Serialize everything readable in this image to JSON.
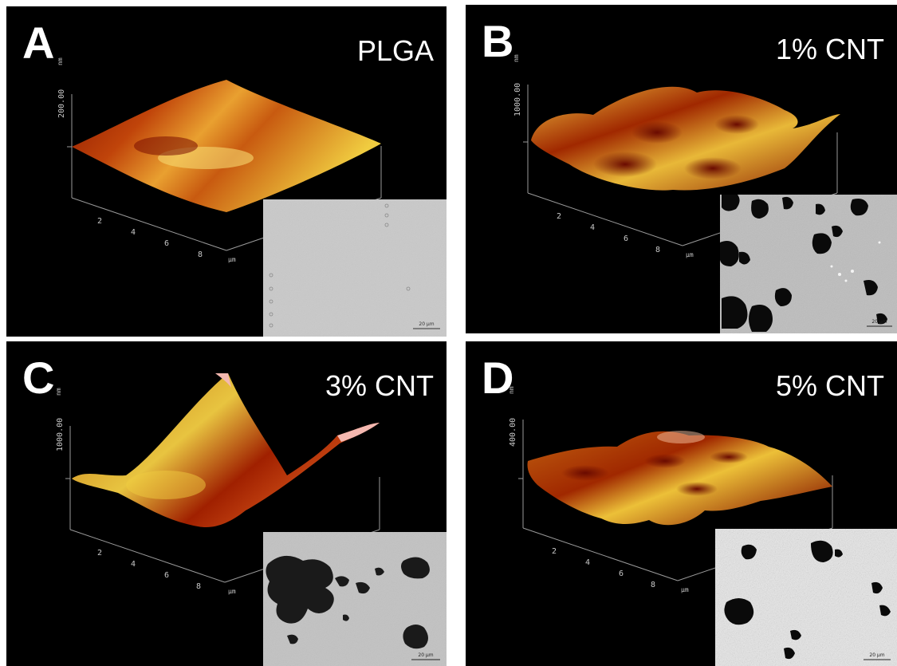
{
  "panels": [
    {
      "letter": "A",
      "label": "PLGA",
      "z_tick": "200.00",
      "z_unit": "nm",
      "x_ticks": [
        "2",
        "4",
        "6",
        "8"
      ],
      "x_unit": "µm",
      "scale_bar": "20 µm"
    },
    {
      "letter": "B",
      "label": "1% CNT",
      "z_tick": "1000.00",
      "z_unit": "nm",
      "x_ticks": [
        "2",
        "4",
        "6",
        "8"
      ],
      "x_unit": "µm",
      "scale_bar": "20 µm"
    },
    {
      "letter": "C",
      "label": "3% CNT",
      "z_tick": "1000.00",
      "z_unit": "nm",
      "x_ticks": [
        "2",
        "4",
        "6",
        "8"
      ],
      "x_unit": "µm",
      "scale_bar": "20 µm"
    },
    {
      "letter": "D",
      "label": "5% CNT",
      "z_tick": "400.00",
      "z_unit": "nm",
      "x_ticks": [
        "2",
        "4",
        "6",
        "8"
      ],
      "x_unit": "µm",
      "scale_bar": "20 µm"
    }
  ],
  "colors": {
    "surface_dark": "#7a0c00",
    "surface_mid": "#d86a10",
    "surface_light": "#f2d040",
    "peak_pink": "#f4b8b0",
    "panel_bg": "#000000"
  }
}
